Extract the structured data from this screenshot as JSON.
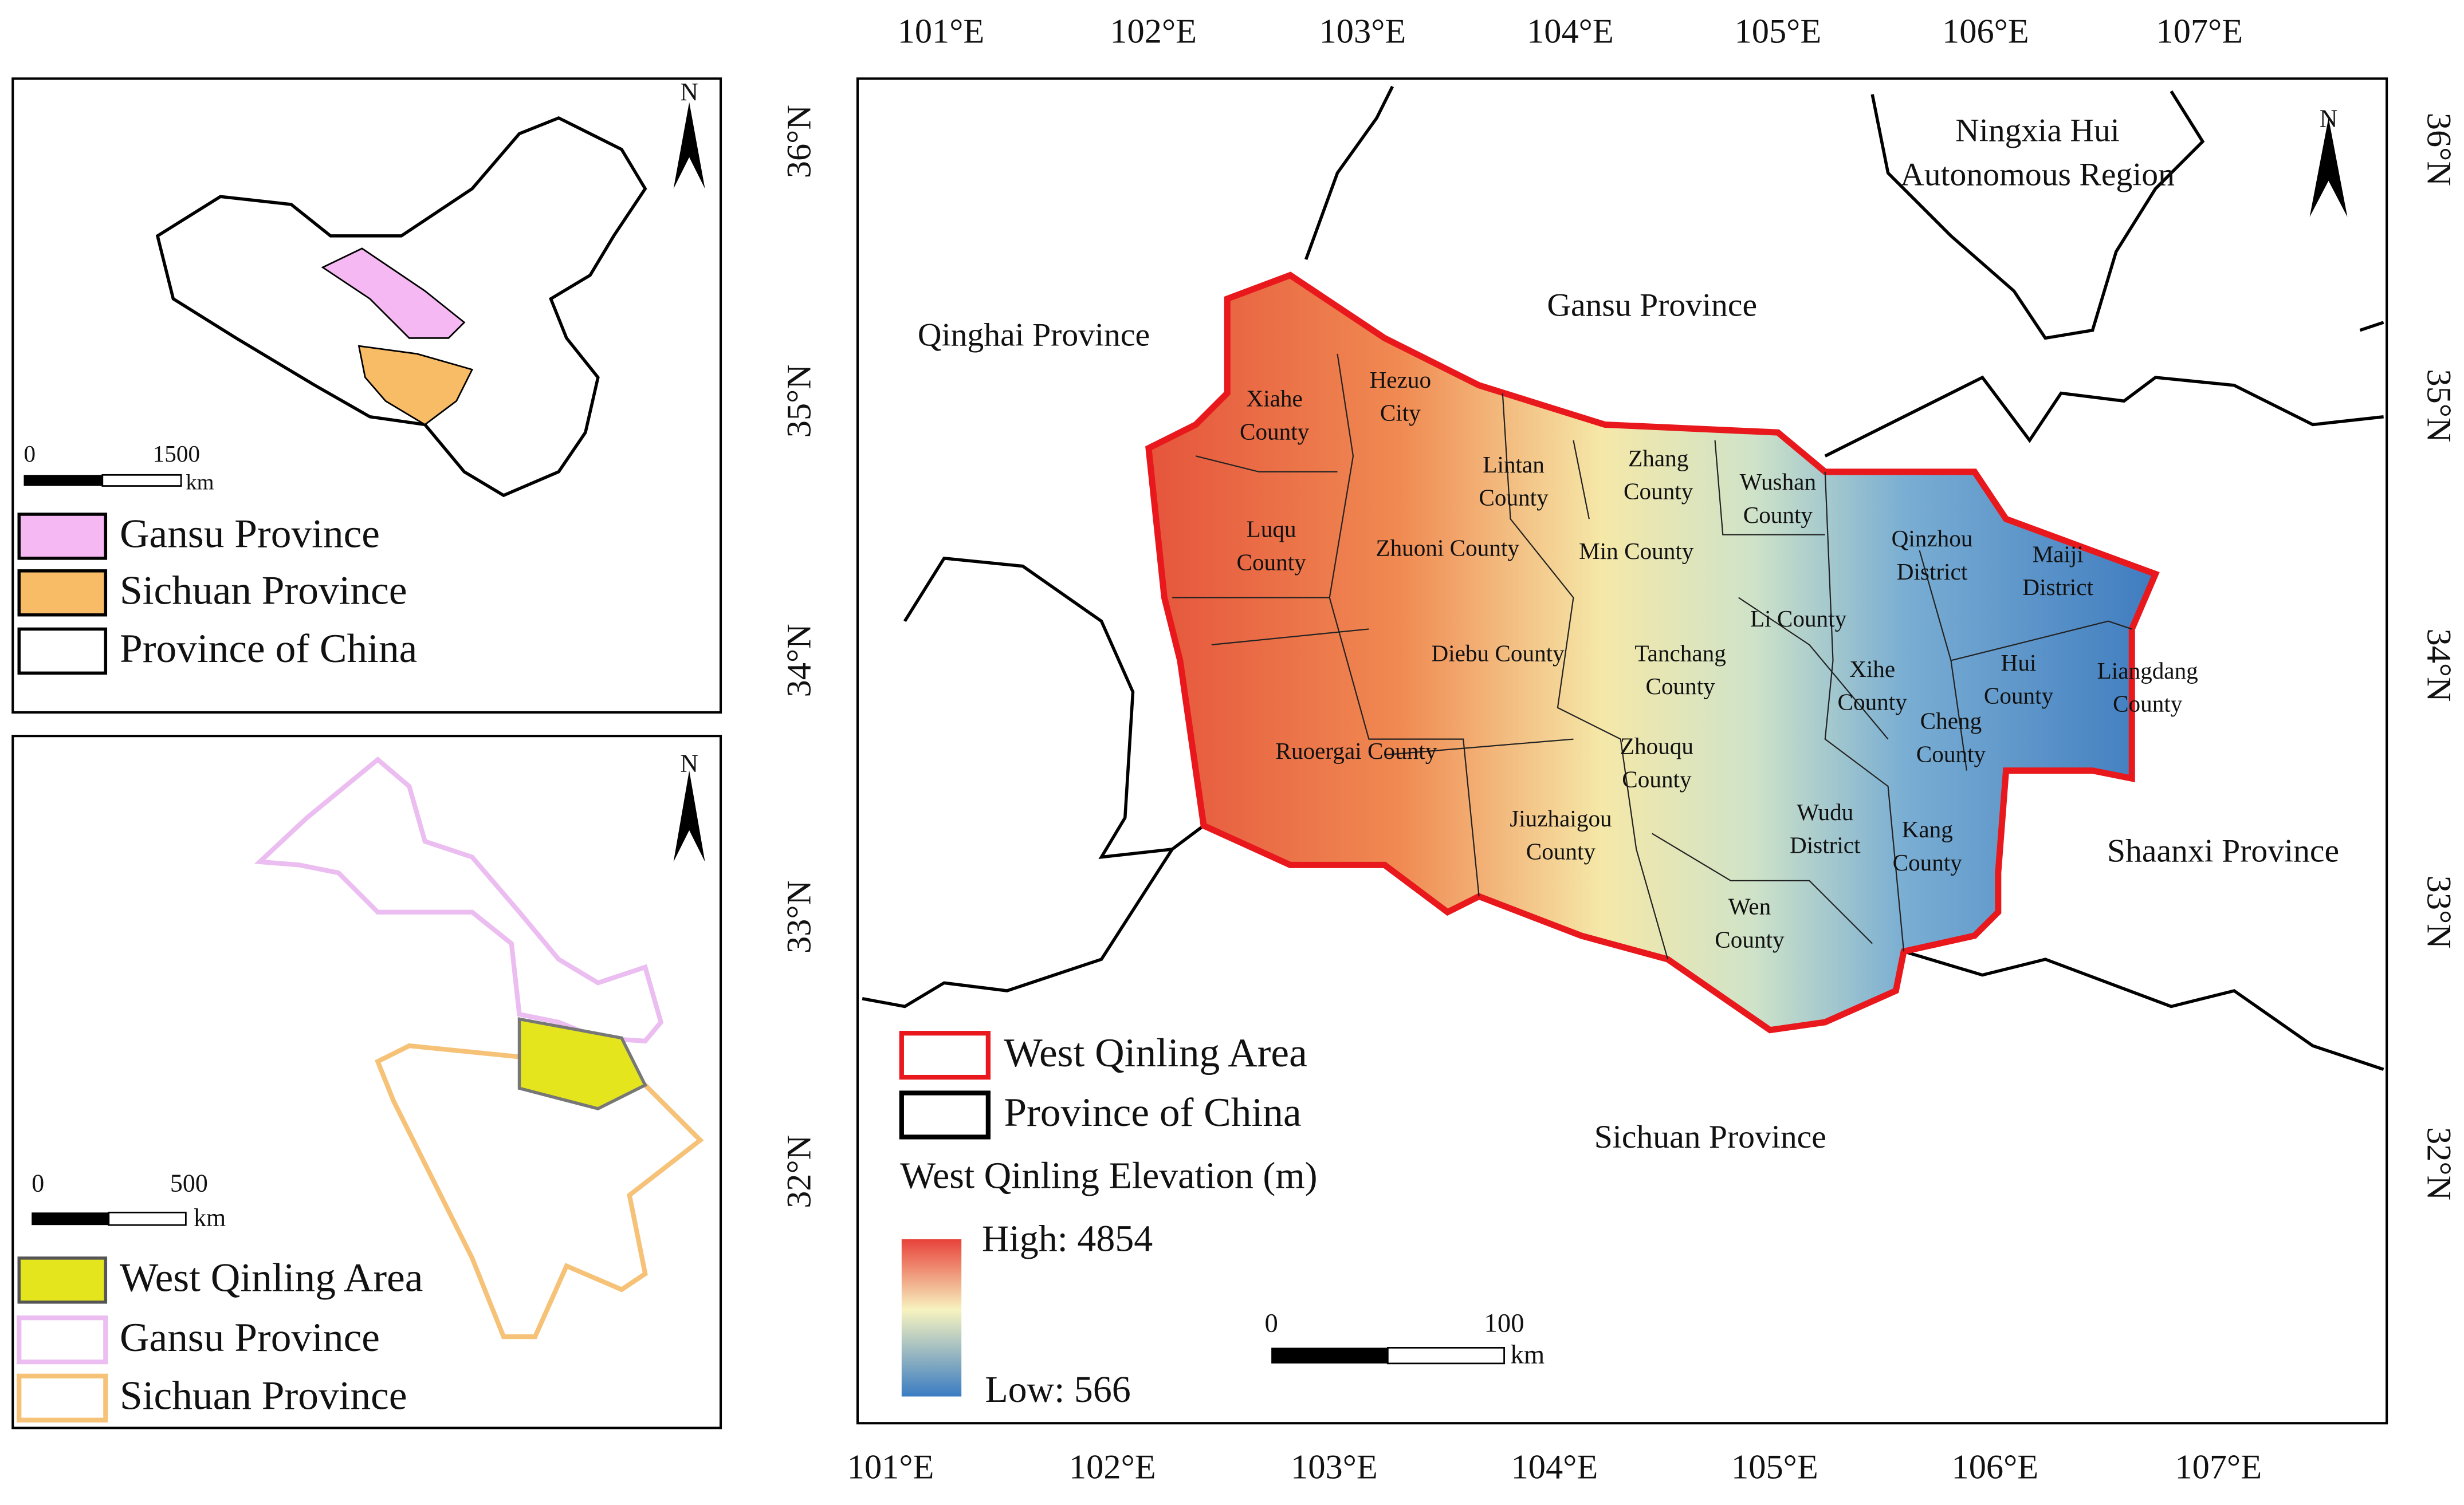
{
  "china_inset": {
    "north": "N",
    "scale_bar": {
      "start": "0",
      "end": "1500",
      "unit": "km"
    },
    "legend": [
      "Gansu Province",
      "Sichuan Province",
      "Province of China"
    ]
  },
  "region_inset": {
    "north": "N",
    "scale_bar": {
      "start": "0",
      "end": "500",
      "unit": "km"
    },
    "legend": [
      "West Qinling Area",
      "Gansu Province",
      "Sichuan Province"
    ]
  },
  "main_map": {
    "longitude_labels_top": [
      "101°E",
      "102°E",
      "103°E",
      "104°E",
      "105°E",
      "106°E",
      "107°E"
    ],
    "longitude_labels_bottom": [
      "101°E",
      "102°E",
      "103°E",
      "104°E",
      "105°E",
      "106°E",
      "107°E"
    ],
    "latitude_labels_left": [
      "36°N",
      "35°N",
      "34°N",
      "33°N",
      "32°N"
    ],
    "latitude_labels_right": [
      "36°N",
      "35°N",
      "34°N",
      "33°N",
      "32°N"
    ],
    "north": "N",
    "provinces": [
      [
        "Qinghai Province"
      ],
      [
        "Gansu Province"
      ],
      [
        "Ningxia Hui",
        "Autonomous Region"
      ],
      [
        "Shaanxi Province"
      ],
      [
        "Sichuan Province"
      ]
    ],
    "counties": [
      [
        "Xiahe",
        "County"
      ],
      [
        "Hezuo",
        "City"
      ],
      [
        "Lintan",
        "County"
      ],
      [
        "Zhang",
        "County"
      ],
      [
        "Wushan",
        "County"
      ],
      [
        "Luqu",
        "County"
      ],
      [
        "Zhuoni County"
      ],
      [
        "Min County"
      ],
      [
        "Qinzhou",
        "District"
      ],
      [
        "Maiji",
        "District"
      ],
      [
        "Li County"
      ],
      [
        "Diebu County"
      ],
      [
        "Tanchang",
        "County"
      ],
      [
        "Xihe",
        "County"
      ],
      [
        "Hui",
        "County"
      ],
      [
        "Liangdang",
        "County"
      ],
      [
        "Cheng",
        "County"
      ],
      [
        "Ruoergai County"
      ],
      [
        "Zhouqu",
        "County"
      ],
      [
        "Jiuzhaigou",
        "County"
      ],
      [
        "Wudu",
        "District"
      ],
      [
        "Kang",
        "County"
      ],
      [
        "Wen",
        "County"
      ]
    ],
    "legend": {
      "items": [
        "West Qinling Area",
        "Province of China"
      ],
      "elevation_title": "West Qinling Elevation (m)",
      "high": "High: 4854",
      "low": "Low: 566"
    },
    "scale_bar": {
      "start": "0",
      "end": "100",
      "unit": "km"
    }
  }
}
